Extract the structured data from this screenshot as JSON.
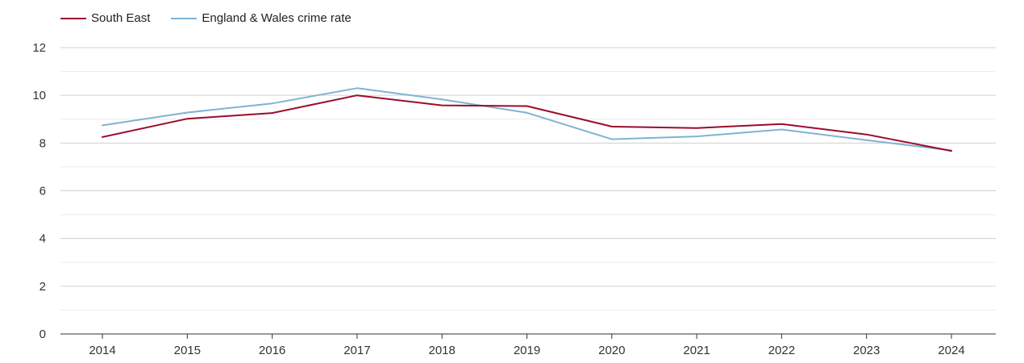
{
  "chart_data": {
    "type": "line",
    "title": "",
    "xlabel": "",
    "ylabel": "",
    "categories": [
      "2014",
      "2015",
      "2016",
      "2017",
      "2018",
      "2019",
      "2020",
      "2021",
      "2022",
      "2023",
      "2024"
    ],
    "ylim": [
      0,
      12
    ],
    "yticks": [
      0,
      2,
      4,
      6,
      8,
      10,
      12
    ],
    "grid": true,
    "legend_position": "top-left",
    "series": [
      {
        "name": "South East",
        "color": "#9b0b2e",
        "values": [
          8.25,
          9.02,
          9.26,
          10.0,
          9.58,
          9.55,
          8.69,
          8.63,
          8.8,
          8.36,
          7.67
        ]
      },
      {
        "name": "England & Wales crime rate",
        "color": "#7fb3d2",
        "values": [
          8.74,
          9.28,
          9.66,
          10.3,
          9.83,
          9.27,
          8.16,
          8.28,
          8.57,
          8.12,
          7.69
        ]
      }
    ]
  }
}
